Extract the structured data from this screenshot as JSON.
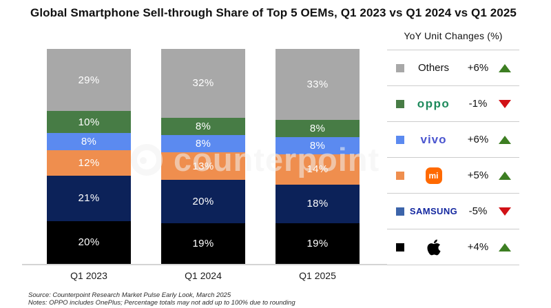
{
  "title": "Global Smartphone Sell-through Share of Top 5 OEMs, Q1 2023 vs Q1 2024 vs Q1 2025",
  "watermark": {
    "text": "counterpoint"
  },
  "footer": {
    "source": "Source: Counterpoint Research Market Pulse Early Look, March 2025",
    "notes": "Notes: OPPO includes OnePlus; Percentage totals may not add up to 100% due to rounding"
  },
  "legend": {
    "header": "YoY Unit Changes (%)",
    "rows": [
      {
        "name": "Others",
        "logo": "text",
        "label": "Others",
        "change": "+6%",
        "direction": "up",
        "swatch": "#a8a8a8",
        "logo_color": "#1a1a1a"
      },
      {
        "name": "OPPO",
        "logo": "oppo",
        "label": "oppo",
        "change": "-1%",
        "direction": "down",
        "swatch": "#477c45",
        "logo_color": "#1e8a5c"
      },
      {
        "name": "vivo",
        "logo": "vivo",
        "label": "vivo",
        "change": "+6%",
        "direction": "up",
        "swatch": "#5b8af0",
        "logo_color": "#4a55cf"
      },
      {
        "name": "Xiaomi",
        "logo": "mi",
        "label": "mi",
        "change": "+5%",
        "direction": "up",
        "swatch": "#ef8e4e",
        "logo_color": "#ff6900"
      },
      {
        "name": "Samsung",
        "logo": "samsung",
        "label": "SAMSUNG",
        "change": "-5%",
        "direction": "down",
        "swatch": "#3c64aa",
        "logo_color": "#1428a0"
      },
      {
        "name": "Apple",
        "logo": "apple",
        "label": "",
        "change": "+4%",
        "direction": "up",
        "swatch": "#000000",
        "logo_color": "#000000"
      }
    ]
  },
  "chart_data": {
    "type": "bar",
    "stacked": true,
    "title": "Global Smartphone Sell-through Share of Top 5 OEMs, Q1 2023 vs Q1 2024 vs Q1 2025",
    "categories": [
      "Q1 2023",
      "Q1 2024",
      "Q1 2025"
    ],
    "series": [
      {
        "name": "Apple",
        "color": "#000000",
        "values": [
          20,
          19,
          19
        ]
      },
      {
        "name": "Samsung",
        "color": "#0c2259",
        "values": [
          21,
          20,
          18
        ]
      },
      {
        "name": "Xiaomi",
        "color": "#ef8e4e",
        "values": [
          12,
          13,
          14
        ]
      },
      {
        "name": "vivo",
        "color": "#5b8af0",
        "values": [
          8,
          8,
          8
        ]
      },
      {
        "name": "OPPO",
        "color": "#477c45",
        "values": [
          10,
          8,
          8
        ]
      },
      {
        "name": "Others",
        "color": "#a8a8a8",
        "values": [
          29,
          32,
          33
        ]
      }
    ],
    "value_suffix": "%",
    "ylim": [
      0,
      100
    ],
    "grid": false,
    "legend_position": "right",
    "notes": "OPPO includes OnePlus; totals may not add to 100% due to rounding"
  }
}
